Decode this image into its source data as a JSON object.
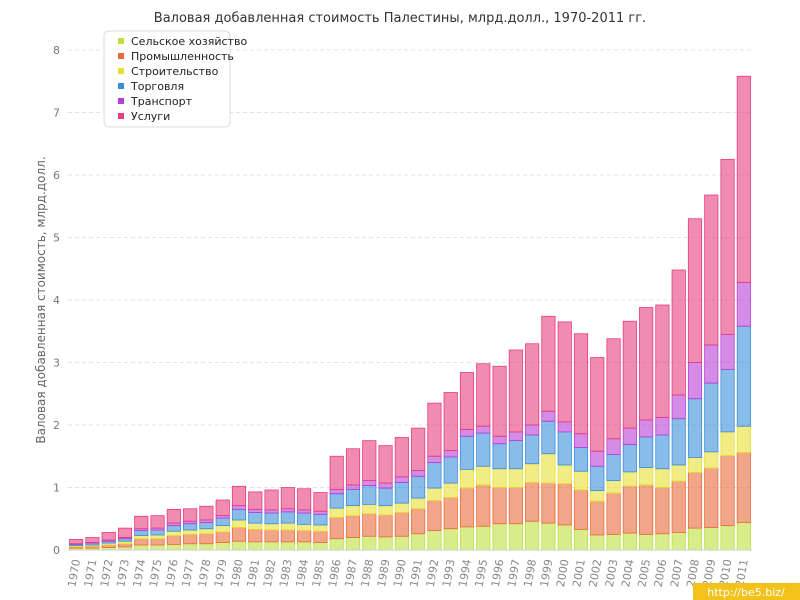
{
  "chart_data": {
    "type": "bar",
    "stacked": true,
    "title": "Валовая добавленная стоимость Палестины, млрд.долл., 1970-2011 гг.",
    "xlabel": "",
    "ylabel": "Валовая добавленная стоимость, млрд.долл.",
    "ylim": [
      0,
      8
    ],
    "yticks": [
      "0",
      "1",
      "2",
      "3",
      "4",
      "5",
      "6",
      "7",
      "8"
    ],
    "grid": true,
    "legend_position": "top-left",
    "categories": [
      "1970",
      "1971",
      "1972",
      "1973",
      "1974",
      "1975",
      "1976",
      "1977",
      "1978",
      "1979",
      "1980",
      "1981",
      "1982",
      "1983",
      "1984",
      "1985",
      "1986",
      "1987",
      "1988",
      "1989",
      "1990",
      "1991",
      "1992",
      "1993",
      "1994",
      "1995",
      "1996",
      "1997",
      "1998",
      "1999",
      "2000",
      "2001",
      "2002",
      "2003",
      "2004",
      "2005",
      "2006",
      "2007",
      "2008",
      "2009",
      "2010",
      "2011"
    ],
    "series": [
      {
        "name": "Сельское хозяйство",
        "color": "#bfdf3f",
        "values": [
          0.03,
          0.03,
          0.04,
          0.05,
          0.08,
          0.08,
          0.09,
          0.1,
          0.1,
          0.12,
          0.14,
          0.13,
          0.13,
          0.13,
          0.13,
          0.12,
          0.18,
          0.2,
          0.22,
          0.21,
          0.22,
          0.26,
          0.31,
          0.34,
          0.37,
          0.38,
          0.42,
          0.42,
          0.46,
          0.43,
          0.4,
          0.33,
          0.24,
          0.25,
          0.27,
          0.25,
          0.26,
          0.28,
          0.35,
          0.36,
          0.39,
          0.44
        ]
      },
      {
        "name": "Промышленность",
        "color": "#ea6a3a",
        "values": [
          0.02,
          0.03,
          0.04,
          0.05,
          0.1,
          0.1,
          0.14,
          0.15,
          0.16,
          0.17,
          0.22,
          0.2,
          0.19,
          0.19,
          0.18,
          0.18,
          0.34,
          0.35,
          0.36,
          0.35,
          0.38,
          0.4,
          0.48,
          0.5,
          0.62,
          0.66,
          0.58,
          0.58,
          0.62,
          0.64,
          0.66,
          0.63,
          0.54,
          0.66,
          0.75,
          0.79,
          0.74,
          0.82,
          0.89,
          0.95,
          1.12,
          1.12
        ]
      },
      {
        "name": "Строительство",
        "color": "#e8e030",
        "values": [
          0.02,
          0.02,
          0.03,
          0.04,
          0.05,
          0.06,
          0.07,
          0.07,
          0.08,
          0.1,
          0.12,
          0.1,
          0.1,
          0.11,
          0.1,
          0.1,
          0.15,
          0.16,
          0.15,
          0.15,
          0.15,
          0.17,
          0.2,
          0.23,
          0.3,
          0.3,
          0.3,
          0.3,
          0.3,
          0.47,
          0.3,
          0.3,
          0.17,
          0.2,
          0.23,
          0.28,
          0.3,
          0.26,
          0.24,
          0.26,
          0.38,
          0.42
        ]
      },
      {
        "name": "Торговля",
        "color": "#3b8fd8",
        "values": [
          0.02,
          0.03,
          0.03,
          0.04,
          0.08,
          0.08,
          0.09,
          0.1,
          0.1,
          0.12,
          0.17,
          0.17,
          0.17,
          0.18,
          0.18,
          0.17,
          0.23,
          0.26,
          0.3,
          0.28,
          0.33,
          0.35,
          0.41,
          0.42,
          0.53,
          0.53,
          0.4,
          0.45,
          0.46,
          0.52,
          0.53,
          0.38,
          0.39,
          0.42,
          0.44,
          0.49,
          0.54,
          0.74,
          0.94,
          1.1,
          1.0,
          1.6
        ]
      },
      {
        "name": "Транспорт",
        "color": "#b73fd6",
        "values": [
          0.01,
          0.01,
          0.02,
          0.02,
          0.03,
          0.03,
          0.04,
          0.04,
          0.04,
          0.04,
          0.06,
          0.05,
          0.05,
          0.05,
          0.05,
          0.05,
          0.07,
          0.07,
          0.08,
          0.08,
          0.09,
          0.09,
          0.1,
          0.1,
          0.11,
          0.11,
          0.12,
          0.14,
          0.16,
          0.16,
          0.16,
          0.22,
          0.24,
          0.25,
          0.26,
          0.27,
          0.28,
          0.38,
          0.58,
          0.61,
          0.56,
          0.7
        ]
      },
      {
        "name": "Услуги",
        "color": "#e63d7d",
        "values": [
          0.07,
          0.08,
          0.12,
          0.15,
          0.2,
          0.2,
          0.22,
          0.2,
          0.22,
          0.25,
          0.31,
          0.28,
          0.32,
          0.34,
          0.34,
          0.3,
          0.53,
          0.58,
          0.64,
          0.6,
          0.63,
          0.68,
          0.85,
          0.93,
          0.91,
          1.0,
          1.12,
          1.31,
          1.3,
          1.52,
          1.6,
          1.6,
          1.5,
          1.6,
          1.71,
          1.8,
          1.8,
          2.0,
          2.3,
          2.4,
          2.8,
          3.3
        ]
      }
    ]
  },
  "watermark": "http://be5.biz/"
}
